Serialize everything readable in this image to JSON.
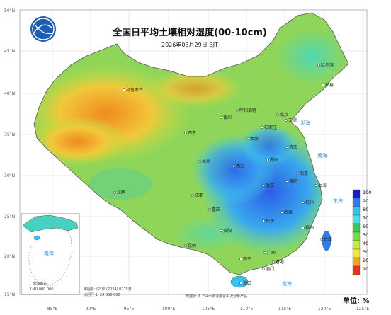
{
  "header": {
    "title": "全国日平均土壤相对湿度(00-10cm)",
    "date": "2026年03月29日 BJT"
  },
  "axes": {
    "lat_labels": [
      "50°N",
      "45°N",
      "40°N",
      "35°N",
      "30°N",
      "25°N",
      "20°N",
      "15°N"
    ],
    "lon_labels": [
      "85°E",
      "90°E",
      "95°E",
      "100°E",
      "105°E",
      "110°E",
      "115°E",
      "120°E",
      "125°E"
    ]
  },
  "cities": [
    {
      "name": "哈尔滨"
    },
    {
      "name": "长春"
    },
    {
      "name": "乌鲁木齐"
    },
    {
      "name": "呼和浩特"
    },
    {
      "name": "北京"
    },
    {
      "name": "天津"
    },
    {
      "name": "石家庄"
    },
    {
      "name": "太原"
    },
    {
      "name": "济南"
    },
    {
      "name": "银川"
    },
    {
      "name": "西宁"
    },
    {
      "name": "兰州"
    },
    {
      "name": "郑州"
    },
    {
      "name": "西安"
    },
    {
      "name": "南京"
    },
    {
      "name": "合肥"
    },
    {
      "name": "上海"
    },
    {
      "name": "武汉"
    },
    {
      "name": "成都"
    },
    {
      "name": "杭州"
    },
    {
      "name": "拉萨"
    },
    {
      "name": "重庆"
    },
    {
      "name": "南昌"
    },
    {
      "name": "长沙"
    },
    {
      "name": "福州"
    },
    {
      "name": "贵阳"
    },
    {
      "name": "台北"
    },
    {
      "name": "昆明"
    },
    {
      "name": "广州"
    },
    {
      "name": "南宁"
    },
    {
      "name": "香港"
    },
    {
      "name": "澳门"
    },
    {
      "name": "海口"
    }
  ],
  "seas": [
    "渤海",
    "黄海",
    "东海",
    "南海",
    "南海"
  ],
  "inset": {
    "label": "南海诸岛",
    "scale": "1:40 000 000"
  },
  "legend": {
    "unit_label": "单位: %",
    "classes": [
      {
        "label": "100",
        "color": "#1a1ad0"
      },
      {
        "label": "90",
        "color": "#2a7cf0"
      },
      {
        "label": "80",
        "color": "#38c0ee"
      },
      {
        "label": "70",
        "color": "#48e0d8"
      },
      {
        "label": "60",
        "color": "#38c860"
      },
      {
        "label": "50",
        "color": "#78dc40"
      },
      {
        "label": "40",
        "color": "#c8e83a"
      },
      {
        "label": "30",
        "color": "#f2e83a"
      },
      {
        "label": "20",
        "color": "#f5a21f"
      },
      {
        "label": "10",
        "color": "#e8331a"
      }
    ]
  },
  "footer": {
    "map_number": "审图号: GS京 (2024) 0275号",
    "scale": "比例尺 1: 20 000 000",
    "source": "数据源: 6.25km多源融合实况分析产品"
  },
  "colors": {
    "land": "#8fd55a",
    "sea": "#ffffff",
    "border": "#555555"
  }
}
